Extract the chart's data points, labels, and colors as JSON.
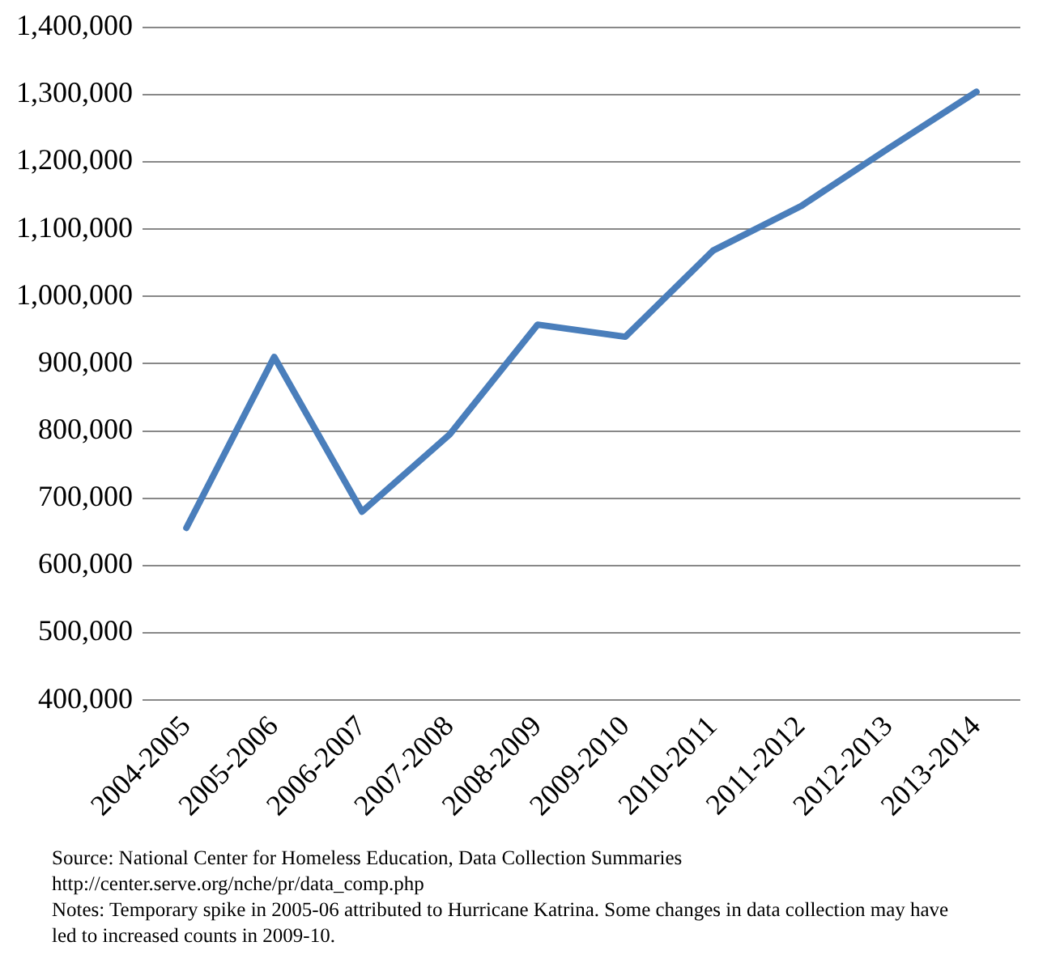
{
  "chart_data": {
    "type": "line",
    "categories": [
      "2004-2005",
      "2005-2006",
      "2006-2007",
      "2007-2008",
      "2008-2009",
      "2009-2010",
      "2010-2011",
      "2011-2012",
      "2012-2013",
      "2013-2014"
    ],
    "series": [
      {
        "color": "#4a7ebb",
        "values": [
          656000,
          910000,
          680000,
          795000,
          958000,
          940000,
          1068000,
          1134000,
          1220000,
          1304000
        ]
      }
    ],
    "ylim": [
      400000,
      1400000
    ],
    "yticks": [
      {
        "value": 400000,
        "label": "400,000"
      },
      {
        "value": 500000,
        "label": "500,000"
      },
      {
        "value": 600000,
        "label": "600,000"
      },
      {
        "value": 700000,
        "label": "700,000"
      },
      {
        "value": 800000,
        "label": "800,000"
      },
      {
        "value": 900000,
        "label": "900,000"
      },
      {
        "value": 1000000,
        "label": "1,000,000"
      },
      {
        "value": 1100000,
        "label": "1,100,000"
      },
      {
        "value": 1200000,
        "label": "1,200,000"
      },
      {
        "value": 1300000,
        "label": "1,300,000"
      },
      {
        "value": 1400000,
        "label": "1,400,000"
      }
    ],
    "grid": "y",
    "legend": false,
    "marker": "none",
    "line_style": "solid",
    "annotations": [
      "Source: National Center for Homeless Education, Data Collection Summaries",
      "http://center.serve.org/nche/pr/data_comp.php",
      "Notes: Temporary spike in 2005-06 attributed to Hurricane Katrina. Some changes in data collection may have led to increased counts in 2009-10."
    ]
  }
}
